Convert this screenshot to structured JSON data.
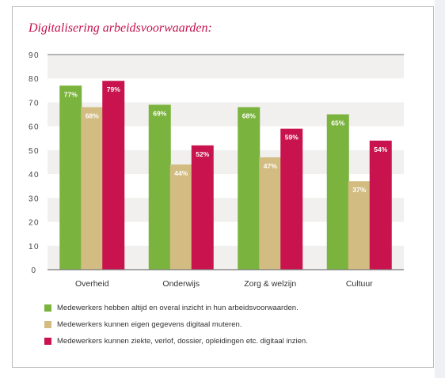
{
  "chart_data": {
    "type": "bar",
    "title": "Digitalisering arbeidsvoorwaarden:",
    "categories": [
      "Overheid",
      "Onderwijs",
      "Zorg & welzijn",
      "Cultuur"
    ],
    "series": [
      {
        "name": "Medewerkers hebben altijd en overal inzicht in hun arbeidsvoorwaarden.",
        "color": "#7ab33d",
        "values": [
          77,
          69,
          68,
          65
        ]
      },
      {
        "name": "Medewerkers kunnen eigen gegevens digitaal muteren.",
        "color": "#d3bc82",
        "values": [
          68,
          44,
          47,
          37
        ]
      },
      {
        "name": "Medewerkers kunnen ziekte, verlof, dossier, opleidingen etc. digitaal inzien.",
        "color": "#c8134e",
        "values": [
          79,
          52,
          59,
          54
        ]
      }
    ],
    "data_labels": [
      [
        "77%",
        "69%",
        "68%",
        "65%"
      ],
      [
        "68%",
        "44%",
        "47%",
        "37%"
      ],
      [
        "79%",
        "52%",
        "59%",
        "54%"
      ]
    ],
    "yticks": [
      0,
      10,
      20,
      30,
      40,
      50,
      60,
      70,
      80,
      90
    ],
    "ylim": [
      0,
      90
    ],
    "xlabel": "",
    "ylabel": "",
    "grid": "alternating horizontal bands",
    "legend_position": "bottom"
  }
}
